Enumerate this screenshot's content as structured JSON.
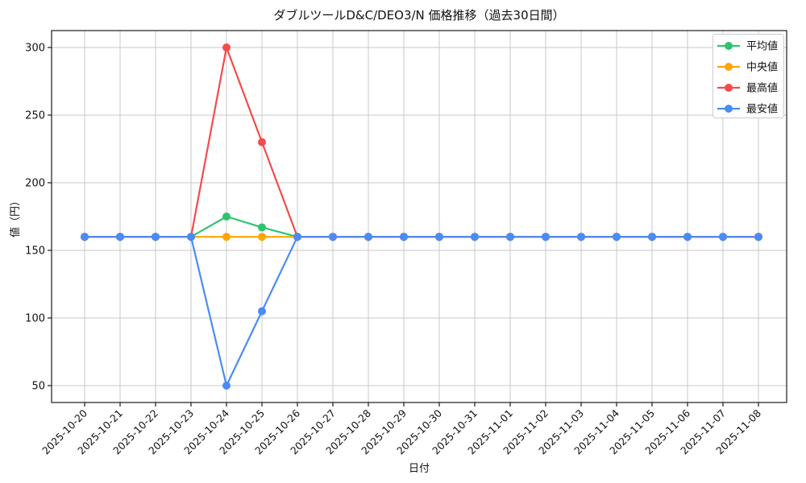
{
  "chart_data": {
    "type": "line",
    "title": "ダブルツールD&C/DEO3/N 価格推移（過去30日間）",
    "xlabel": "日付",
    "ylabel": "値（円）",
    "x": [
      "2025-10-20",
      "2025-10-21",
      "2025-10-22",
      "2025-10-23",
      "2025-10-24",
      "2025-10-25",
      "2025-10-26",
      "2025-10-27",
      "2025-10-28",
      "2025-10-29",
      "2025-10-30",
      "2025-10-31",
      "2025-11-01",
      "2025-11-02",
      "2025-11-03",
      "2025-11-04",
      "2025-11-05",
      "2025-11-06",
      "2025-11-07",
      "2025-11-08"
    ],
    "series": [
      {
        "id": "average",
        "name": "平均値",
        "color": "#2ec46e",
        "values": [
          160,
          160,
          160,
          160,
          175,
          167,
          160,
          160,
          160,
          160,
          160,
          160,
          160,
          160,
          160,
          160,
          160,
          160,
          160,
          160
        ]
      },
      {
        "id": "median",
        "name": "中央値",
        "color": "#ffa502",
        "values": [
          160,
          160,
          160,
          160,
          160,
          160,
          160,
          160,
          160,
          160,
          160,
          160,
          160,
          160,
          160,
          160,
          160,
          160,
          160,
          160
        ]
      },
      {
        "id": "max",
        "name": "最高値",
        "color": "#f44b4b",
        "values": [
          160,
          160,
          160,
          160,
          300,
          230,
          160,
          160,
          160,
          160,
          160,
          160,
          160,
          160,
          160,
          160,
          160,
          160,
          160,
          160
        ]
      },
      {
        "id": "min",
        "name": "最安値",
        "color": "#4b8bf5",
        "values": [
          160,
          160,
          160,
          160,
          50,
          105,
          160,
          160,
          160,
          160,
          160,
          160,
          160,
          160,
          160,
          160,
          160,
          160,
          160,
          160
        ]
      }
    ],
    "yticks": [
      50,
      100,
      150,
      200,
      250,
      300
    ],
    "ylim": [
      37.5,
      312.5
    ],
    "grid": true,
    "grid_color": "#c9c9c9",
    "spine_color": "#1a1a1a",
    "legend_position": "upper right",
    "background": "#ffffff"
  }
}
